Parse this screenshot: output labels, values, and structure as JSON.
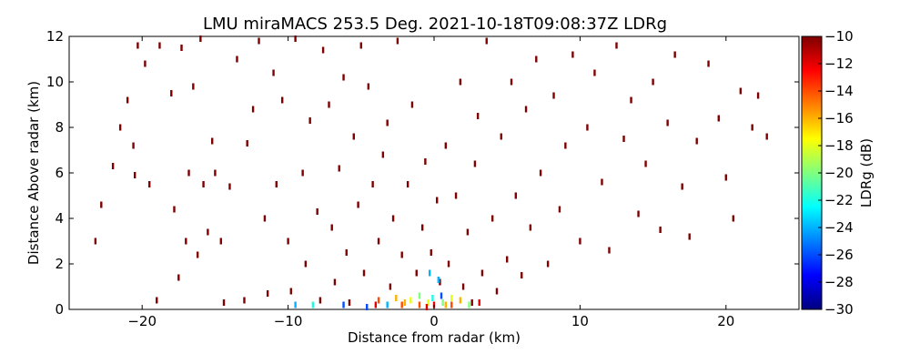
{
  "chart_data": {
    "type": "scatter",
    "title": "LMU miraMACS 253.5 Deg. 2021-10-18T09:08:37Z  LDRg",
    "xlabel": "Distance from radar (km)",
    "ylabel": "Distance Above radar  (km)",
    "xlim": [
      -25,
      25
    ],
    "ylim": [
      0,
      12
    ],
    "xticks": [
      -20,
      -10,
      0,
      10,
      20
    ],
    "xtick_labels": [
      "−20",
      "−10",
      "0",
      "10",
      "20"
    ],
    "yticks": [
      0,
      2,
      4,
      6,
      8,
      10,
      12
    ],
    "ytick_labels": [
      "0",
      "2",
      "4",
      "6",
      "8",
      "10",
      "12"
    ],
    "grid": false,
    "colorbar": {
      "label": "LDRg (dB)",
      "range": [
        -30,
        -10
      ],
      "ticks": [
        -10,
        -12,
        -14,
        -16,
        -18,
        -20,
        -22,
        -24,
        -26,
        -28,
        -30
      ],
      "tick_labels": [
        "−10",
        "−12",
        "−14",
        "−16",
        "−18",
        "−20",
        "−22",
        "−24",
        "−26",
        "−28",
        "−30"
      ],
      "colormap": "jet",
      "colors": [
        "#00007f",
        "#0000ff",
        "#007fff",
        "#00ffff",
        "#7fff7f",
        "#ffff00",
        "#ff7f00",
        "#ff0000",
        "#7f0000"
      ]
    },
    "series": [
      {
        "points": [
          [
            -23.2,
            3.0,
            -10
          ],
          [
            -22.8,
            4.6,
            -10
          ],
          [
            -22.0,
            6.3,
            -10
          ],
          [
            -21.5,
            8.0,
            -10
          ],
          [
            -21.0,
            9.2,
            -10
          ],
          [
            -20.6,
            7.2,
            -10
          ],
          [
            -20.3,
            11.6,
            -10
          ],
          [
            -20.5,
            5.9,
            -10
          ],
          [
            -19.8,
            10.8,
            -10
          ],
          [
            -19.5,
            5.5,
            -10
          ],
          [
            -19.0,
            0.4,
            -10
          ],
          [
            -18.8,
            11.6,
            -10
          ],
          [
            -18.0,
            9.5,
            -10
          ],
          [
            -17.8,
            4.4,
            -10
          ],
          [
            -17.5,
            1.4,
            -10
          ],
          [
            -17.3,
            11.5,
            -10
          ],
          [
            -17.0,
            3.0,
            -10
          ],
          [
            -16.8,
            6.0,
            -10
          ],
          [
            -16.5,
            9.8,
            -10
          ],
          [
            -16.2,
            2.4,
            -10
          ],
          [
            -16.0,
            11.9,
            -10
          ],
          [
            -15.8,
            5.5,
            -10
          ],
          [
            -15.5,
            3.4,
            -10
          ],
          [
            -15.2,
            7.4,
            -10
          ],
          [
            -15.0,
            6.0,
            -10
          ],
          [
            -14.6,
            3.0,
            -10
          ],
          [
            -14.4,
            0.3,
            -10
          ],
          [
            -14.0,
            5.4,
            -10
          ],
          [
            -13.5,
            11.0,
            -10
          ],
          [
            -13.0,
            0.4,
            -10
          ],
          [
            -12.8,
            7.3,
            -10
          ],
          [
            -12.4,
            8.8,
            -10
          ],
          [
            -12.0,
            11.8,
            -10
          ],
          [
            -11.6,
            4.0,
            -10
          ],
          [
            -11.4,
            0.7,
            -10
          ],
          [
            -11.0,
            10.4,
            -10
          ],
          [
            -10.8,
            5.5,
            -10
          ],
          [
            -10.4,
            9.2,
            -10
          ],
          [
            -10.0,
            3.0,
            -10
          ],
          [
            -9.8,
            0.8,
            -10
          ],
          [
            -9.5,
            11.9,
            -10
          ],
          [
            -9.0,
            6.0,
            -10
          ],
          [
            -8.8,
            2.0,
            -10
          ],
          [
            -8.5,
            8.3,
            -10
          ],
          [
            -8.0,
            4.3,
            -10
          ],
          [
            -7.8,
            0.4,
            -10
          ],
          [
            -7.6,
            11.4,
            -10
          ],
          [
            -7.2,
            9.0,
            -10
          ],
          [
            -7.0,
            3.6,
            -10
          ],
          [
            -6.8,
            1.2,
            -10
          ],
          [
            -6.5,
            6.2,
            -10
          ],
          [
            -6.2,
            10.2,
            -10
          ],
          [
            -6.0,
            2.5,
            -10
          ],
          [
            -5.8,
            0.3,
            -10
          ],
          [
            -5.5,
            7.6,
            -10
          ],
          [
            -5.2,
            4.6,
            -10
          ],
          [
            -5.0,
            11.6,
            -10
          ],
          [
            -4.8,
            1.6,
            -10
          ],
          [
            -4.5,
            9.8,
            -10
          ],
          [
            -4.2,
            5.5,
            -10
          ],
          [
            -4.0,
            0.2,
            -12
          ],
          [
            -3.8,
            3.0,
            -10
          ],
          [
            -3.5,
            6.8,
            -10
          ],
          [
            -3.2,
            8.2,
            -10
          ],
          [
            -3.0,
            1.0,
            -10
          ],
          [
            -2.8,
            4.0,
            -10
          ],
          [
            -2.5,
            11.8,
            -10
          ],
          [
            -2.2,
            2.4,
            -10
          ],
          [
            -2.0,
            0.3,
            -16
          ],
          [
            -1.8,
            5.5,
            -10
          ],
          [
            -1.5,
            9.0,
            -10
          ],
          [
            -1.2,
            1.6,
            -10
          ],
          [
            -1.0,
            0.2,
            -14
          ],
          [
            -0.8,
            3.6,
            -10
          ],
          [
            -0.6,
            6.5,
            -10
          ],
          [
            -0.4,
            0.3,
            -18
          ],
          [
            -0.2,
            2.5,
            -10
          ],
          [
            0.0,
            0.2,
            -12
          ],
          [
            0.2,
            4.8,
            -10
          ],
          [
            0.4,
            1.2,
            -10
          ],
          [
            0.6,
            0.3,
            -20
          ],
          [
            0.8,
            7.2,
            -10
          ],
          [
            1.0,
            2.0,
            -10
          ],
          [
            1.2,
            0.2,
            -14
          ],
          [
            1.5,
            5.0,
            -10
          ],
          [
            1.8,
            10.0,
            -10
          ],
          [
            2.0,
            1.0,
            -10
          ],
          [
            2.3,
            3.4,
            -10
          ],
          [
            2.6,
            0.3,
            -10
          ],
          [
            2.8,
            6.4,
            -10
          ],
          [
            3.0,
            8.5,
            -10
          ],
          [
            3.3,
            1.6,
            -10
          ],
          [
            3.6,
            11.8,
            -10
          ],
          [
            4.0,
            4.0,
            -10
          ],
          [
            4.3,
            0.8,
            -10
          ],
          [
            4.6,
            7.6,
            -10
          ],
          [
            5.0,
            2.2,
            -10
          ],
          [
            5.3,
            10.0,
            -10
          ],
          [
            5.6,
            5.0,
            -10
          ],
          [
            6.0,
            1.5,
            -10
          ],
          [
            6.3,
            8.8,
            -10
          ],
          [
            6.6,
            3.6,
            -10
          ],
          [
            7.0,
            11.0,
            -10
          ],
          [
            7.3,
            6.0,
            -10
          ],
          [
            7.8,
            2.0,
            -10
          ],
          [
            8.2,
            9.4,
            -10
          ],
          [
            8.6,
            4.4,
            -10
          ],
          [
            9.0,
            7.2,
            -10
          ],
          [
            9.5,
            11.2,
            -10
          ],
          [
            10.0,
            3.0,
            -10
          ],
          [
            10.5,
            8.0,
            -10
          ],
          [
            11.0,
            10.4,
            -10
          ],
          [
            11.5,
            5.6,
            -10
          ],
          [
            12.0,
            2.6,
            -10
          ],
          [
            12.5,
            11.6,
            -10
          ],
          [
            13.0,
            7.5,
            -10
          ],
          [
            13.5,
            9.2,
            -10
          ],
          [
            14.0,
            4.2,
            -10
          ],
          [
            14.5,
            6.4,
            -10
          ],
          [
            15.0,
            10.0,
            -10
          ],
          [
            15.5,
            3.5,
            -10
          ],
          [
            16.0,
            8.2,
            -10
          ],
          [
            16.5,
            11.2,
            -10
          ],
          [
            17.0,
            5.4,
            -10
          ],
          [
            17.5,
            3.2,
            -10
          ],
          [
            18.0,
            7.4,
            -10
          ],
          [
            18.8,
            10.8,
            -10
          ],
          [
            19.5,
            8.4,
            -10
          ],
          [
            20.0,
            5.8,
            -10
          ],
          [
            20.5,
            4.0,
            -10
          ],
          [
            21.0,
            9.6,
            -10
          ],
          [
            21.8,
            8.0,
            -10
          ],
          [
            22.2,
            9.4,
            -10
          ],
          [
            22.8,
            7.6,
            -10
          ],
          [
            -0.3,
            1.6,
            -24
          ],
          [
            0.3,
            1.3,
            -24
          ],
          [
            -2.6,
            0.5,
            -16
          ],
          [
            -1.6,
            0.4,
            -18
          ],
          [
            1.8,
            0.4,
            -16
          ],
          [
            -0.1,
            0.5,
            -22
          ],
          [
            0.5,
            0.6,
            -26
          ],
          [
            -3.2,
            0.2,
            -24
          ],
          [
            2.4,
            0.2,
            -20
          ],
          [
            -4.6,
            0.1,
            -26
          ],
          [
            -9.5,
            0.2,
            -24
          ],
          [
            -8.3,
            0.2,
            -22
          ],
          [
            -6.2,
            0.2,
            -26
          ],
          [
            -1.0,
            0.6,
            -20
          ],
          [
            1.2,
            0.5,
            -18
          ],
          [
            -2.2,
            0.2,
            -14
          ],
          [
            0.8,
            0.2,
            -16
          ],
          [
            -0.5,
            0.1,
            -12
          ],
          [
            3.1,
            0.3,
            -12
          ],
          [
            -3.8,
            0.4,
            -14
          ]
        ]
      }
    ]
  }
}
